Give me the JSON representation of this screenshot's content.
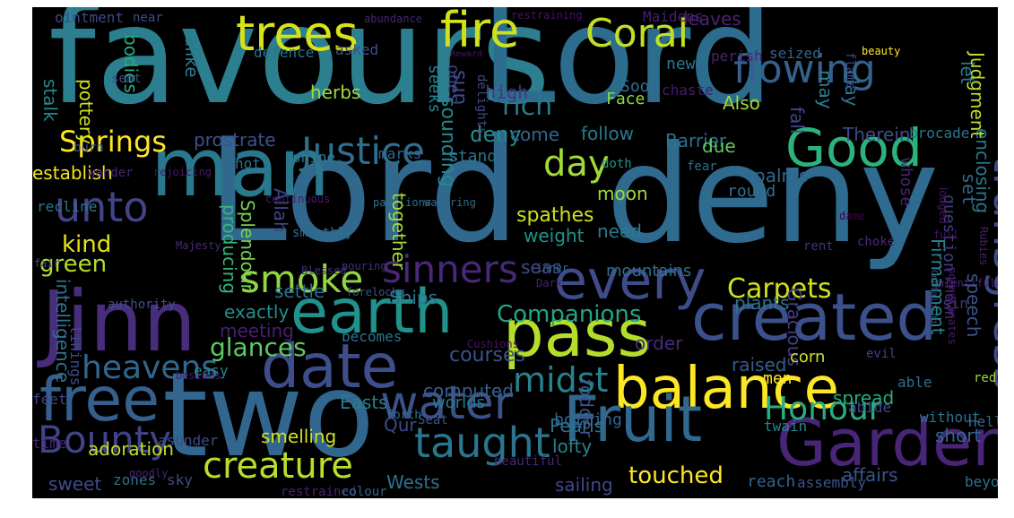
{
  "words": [
    {
      "text": "favours",
      "color": "#2c7f8e"
    },
    {
      "text": "Lord",
      "color": "#2c6d8e"
    },
    {
      "text": "Lord",
      "color": "#30688e"
    },
    {
      "text": "deny",
      "color": "#2f6b8e"
    },
    {
      "text": "man",
      "color": "#2a788e"
    },
    {
      "text": "Jinn",
      "color": "#472d7b"
    },
    {
      "text": "earth",
      "color": "#21918c"
    },
    {
      "text": "pass",
      "color": "#b5de2b"
    },
    {
      "text": "created",
      "color": "#3b518b"
    },
    {
      "text": "two",
      "color": "#31668e"
    },
    {
      "text": "free",
      "color": "#355f8d"
    },
    {
      "text": "date",
      "color": "#3d4e8a"
    },
    {
      "text": "balance",
      "color": "#fde725"
    },
    {
      "text": "Fruit",
      "color": "#31688e"
    },
    {
      "text": "Gardens",
      "color": "#482576"
    },
    {
      "text": "water",
      "color": "#3b528b"
    },
    {
      "text": "Good",
      "color": "#2db27d"
    },
    {
      "text": "every",
      "color": "#3e4c8a"
    },
    {
      "text": "trees",
      "color": "#d8e219"
    },
    {
      "text": "fire",
      "color": "#d0e11c"
    },
    {
      "text": "Coral",
      "color": "#c2df23"
    },
    {
      "text": "flowing",
      "color": "#34618d"
    },
    {
      "text": "Justice",
      "color": "#2e6e8e"
    },
    {
      "text": "unto",
      "color": "#414487"
    },
    {
      "text": "smoke",
      "color": "#90d743"
    },
    {
      "text": "sinners",
      "color": "#482878"
    },
    {
      "text": "transgress",
      "color": "#3e4989"
    },
    {
      "text": "taught",
      "color": "#2a768e"
    },
    {
      "text": "creature",
      "color": "#b8de29"
    },
    {
      "text": "Bounty",
      "color": "#414487"
    },
    {
      "text": "heavens",
      "color": "#31678e"
    },
    {
      "text": "Honour",
      "color": "#27ad81"
    },
    {
      "text": "midst",
      "color": "#26828e"
    },
    {
      "text": "day",
      "color": "#a2da37"
    },
    {
      "text": "Springs",
      "color": "#fde725"
    },
    {
      "text": "rich",
      "color": "#2a778e"
    },
    {
      "text": "Carpets",
      "color": "#d0e11c"
    },
    {
      "text": "Companions",
      "color": "#21a685"
    },
    {
      "text": "kind",
      "color": "#e5e419"
    },
    {
      "text": "green",
      "color": "#b5de2b"
    },
    {
      "text": "glances",
      "color": "#5ec962"
    },
    {
      "text": "touched",
      "color": "#fde725"
    },
    {
      "text": "intelligence",
      "color": "#2c738e"
    },
    {
      "text": "Gracious",
      "color": "#433e85"
    },
    {
      "text": "Therein",
      "color": "#3e4a89"
    },
    {
      "text": "Also",
      "color": "#9fda3a"
    },
    {
      "text": "high",
      "color": "#453581"
    },
    {
      "text": "deny",
      "color": "#228c8d"
    },
    {
      "text": "fall",
      "color": "#3f4788"
    },
    {
      "text": "may",
      "color": "#27808e"
    },
    {
      "text": "clay",
      "color": "#2b758e"
    },
    {
      "text": "bodies",
      "color": "#25ab82"
    },
    {
      "text": "alike",
      "color": "#287c8e"
    },
    {
      "text": "herbs",
      "color": "#a2da37"
    },
    {
      "text": "leaves",
      "color": "#482475"
    },
    {
      "text": "let",
      "color": "#2a788e"
    },
    {
      "text": "prostrate",
      "color": "#3b528b"
    },
    {
      "text": "establish",
      "color": "#f1e51d"
    },
    {
      "text": "follow",
      "color": "#2a778e"
    },
    {
      "text": "come",
      "color": "#31668e"
    },
    {
      "text": "Barrier",
      "color": "#2c728e"
    },
    {
      "text": "palms",
      "color": "#31678e"
    },
    {
      "text": "moon",
      "color": "#a0da39"
    },
    {
      "text": "spathes",
      "color": "#cae11f"
    },
    {
      "text": "weight",
      "color": "#1f948c"
    },
    {
      "text": "mountains",
      "color": "#2d708e"
    },
    {
      "text": "plants",
      "color": "#2c728e"
    },
    {
      "text": "exactly",
      "color": "#218e8d"
    },
    {
      "text": "meeting",
      "color": "#481f70"
    },
    {
      "text": "order",
      "color": "#472a7a"
    },
    {
      "text": "courses",
      "color": "#3b528b"
    },
    {
      "text": "raised",
      "color": "#355e8d"
    },
    {
      "text": "corn",
      "color": "#cde11d"
    },
    {
      "text": "spread",
      "color": "#28ae80"
    },
    {
      "text": "computed",
      "color": "#355f8d"
    },
    {
      "text": "worlds",
      "color": "#297b8e"
    },
    {
      "text": "Easts",
      "color": "#287d8e"
    },
    {
      "text": "Qur",
      "color": "#3e4989"
    },
    {
      "text": "adoration",
      "color": "#c0df25"
    },
    {
      "text": "smelling",
      "color": "#d2e21b"
    },
    {
      "text": "Pearls",
      "color": "#2c738e"
    },
    {
      "text": "lofty",
      "color": "#26828e"
    },
    {
      "text": "short",
      "color": "#31688e"
    },
    {
      "text": "Wests",
      "color": "#2c738e"
    },
    {
      "text": "sweet",
      "color": "#3e4c8a"
    },
    {
      "text": "sailing",
      "color": "#3f4889"
    },
    {
      "text": "affairs",
      "color": "#39558c"
    },
    {
      "text": "Ships",
      "color": "#2a788e"
    },
    {
      "text": "settle",
      "color": "#2f6b8e"
    },
    {
      "text": "need",
      "color": "#297b8e"
    },
    {
      "text": "new",
      "color": "#2a778e"
    },
    {
      "text": "Soon",
      "color": "#2d718e"
    },
    {
      "text": "ones",
      "color": "#3f4788"
    },
    {
      "text": "Face",
      "color": "#90d743"
    },
    {
      "text": "chaste",
      "color": "#481b6d"
    },
    {
      "text": "perish",
      "color": "#482475"
    },
    {
      "text": "seized",
      "color": "#32648e"
    },
    {
      "text": "marks",
      "color": "#33638d"
    },
    {
      "text": "stand",
      "color": "#2b748e"
    },
    {
      "text": "shine",
      "color": "#287c8e"
    },
    {
      "text": "hot",
      "color": "#2c718e"
    },
    {
      "text": "doth",
      "color": "#20928c"
    },
    {
      "text": "fear",
      "color": "#2e6f8e"
    },
    {
      "text": "round",
      "color": "#2d708e"
    },
    {
      "text": "question",
      "color": "#433d84"
    },
    {
      "text": "whose",
      "color": "#482677"
    },
    {
      "text": "brocade",
      "color": "#2b758e"
    },
    {
      "text": "set",
      "color": "#2f6c8e"
    },
    {
      "text": "Splendour",
      "color": "#75d054"
    },
    {
      "text": "known",
      "color": "#482878"
    },
    {
      "text": "sin",
      "color": "#46317e"
    },
    {
      "text": "evil",
      "color": "#414487"
    },
    {
      "text": "becomes",
      "color": "#2c738e"
    },
    {
      "text": "authority",
      "color": "#3b518b"
    },
    {
      "text": "boiling",
      "color": "#31678e"
    },
    {
      "text": "Hell",
      "color": "#31688e"
    },
    {
      "text": "twain",
      "color": "#25858e"
    },
    {
      "text": "abide",
      "color": "#3e4989"
    },
    {
      "text": "without",
      "color": "#2c728e"
    },
    {
      "text": "able",
      "color": "#2e6e8e"
    },
    {
      "text": "red",
      "color": "#a2da37"
    },
    {
      "text": "men",
      "color": "#fde725"
    },
    {
      "text": "easy",
      "color": "#23898e"
    },
    {
      "text": "feet",
      "color": "#3f4788"
    },
    {
      "text": "time",
      "color": "#482576"
    },
    {
      "text": "asunder",
      "color": "#3e4c8a"
    },
    {
      "text": "zones",
      "color": "#2c718e"
    },
    {
      "text": "sky",
      "color": "#3d4e8a"
    },
    {
      "text": "restrained",
      "color": "#482173"
    },
    {
      "text": "colour",
      "color": "#31668e"
    },
    {
      "text": "assembly",
      "color": "#3a548c"
    },
    {
      "text": "reach",
      "color": "#32648e"
    },
    {
      "text": "beyond",
      "color": "#2c728e"
    },
    {
      "text": "beautiful",
      "color": "#482878"
    },
    {
      "text": "goodly",
      "color": "#482475"
    },
    {
      "text": "Seat",
      "color": "#39558c"
    },
    {
      "text": "forth",
      "color": "#2c738e"
    },
    {
      "text": "besides",
      "color": "#481f70"
    },
    {
      "text": "Cushions",
      "color": "#471365"
    },
    {
      "text": "fair",
      "color": "#3e4c8a"
    },
    {
      "text": "Blessed",
      "color": "#472d7b"
    },
    {
      "text": "pouring",
      "color": "#46317e"
    },
    {
      "text": "Majesty",
      "color": "#482878"
    },
    {
      "text": "inner",
      "color": "#2c728e"
    },
    {
      "text": "Dark",
      "color": "#482173"
    },
    {
      "text": "forelocks",
      "color": "#3b518b"
    },
    {
      "text": "plentiful",
      "color": "#482475"
    },
    {
      "text": "pomegranates",
      "color": "#481b6d"
    },
    {
      "text": "rent",
      "color": "#46317e"
    },
    {
      "text": "choke",
      "color": "#472a7a"
    },
    {
      "text": "dame",
      "color": "#440154"
    },
    {
      "text": "full",
      "color": "#471365"
    },
    {
      "text": "Containing",
      "color": "#414487"
    },
    {
      "text": "Rubies",
      "color": "#482071"
    },
    {
      "text": "lodged",
      "color": "#481769"
    },
    {
      "text": "continuous",
      "color": "#481d6f"
    },
    {
      "text": "pavilions",
      "color": "#2c728e"
    },
    {
      "text": "watering",
      "color": "#31688e"
    },
    {
      "text": "wander",
      "color": "#482475"
    },
    {
      "text": "rejoicing",
      "color": "#481769"
    },
    {
      "text": "recline",
      "color": "#2a778e"
    },
    {
      "text": "burn",
      "color": "#3b528b"
    },
    {
      "text": "sent",
      "color": "#3e4c8a"
    },
    {
      "text": "pottery",
      "color": "#cde11d"
    },
    {
      "text": "stalk",
      "color": "#23898e"
    },
    {
      "text": "ointment",
      "color": "#3e4989"
    },
    {
      "text": "near",
      "color": "#3e4c8a"
    },
    {
      "text": "abundance",
      "color": "#482475"
    },
    {
      "text": "restraining",
      "color": "#471365"
    },
    {
      "text": "Maidens",
      "color": "#481f70"
    },
    {
      "text": "beauty",
      "color": "#fde725"
    },
    {
      "text": "Reward",
      "color": "#481769"
    },
    {
      "text": "asked",
      "color": "#3b528b"
    },
    {
      "text": "defence",
      "color": "#2c728e"
    },
    {
      "text": "seeks",
      "color": "#25858e"
    },
    {
      "text": "delights",
      "color": "#3e4a89"
    },
    {
      "text": "sun",
      "color": "#3e4a89"
    },
    {
      "text": "sounding",
      "color": "#23888e"
    },
    {
      "text": "producing",
      "color": "#35b779"
    },
    {
      "text": "Allah",
      "color": "#414487"
    },
    {
      "text": "smoothly",
      "color": "#2e6e8e"
    },
    {
      "text": "together",
      "color": "#a8db34"
    },
    {
      "text": "seas",
      "color": "#3e4a89"
    },
    {
      "text": "fodder",
      "color": "#3b528b"
    },
    {
      "text": "due",
      "color": "#5ec962"
    },
    {
      "text": "speech",
      "color": "#3b528b"
    },
    {
      "text": "enclosing",
      "color": "#2a788e"
    },
    {
      "text": "Firmament",
      "color": "#26828e"
    },
    {
      "text": "Judgment",
      "color": "#b8de29"
    },
    {
      "text": "flame",
      "color": "#3e4989"
    },
    {
      "text": "linings",
      "color": "#3e4c8a"
    }
  ]
}
